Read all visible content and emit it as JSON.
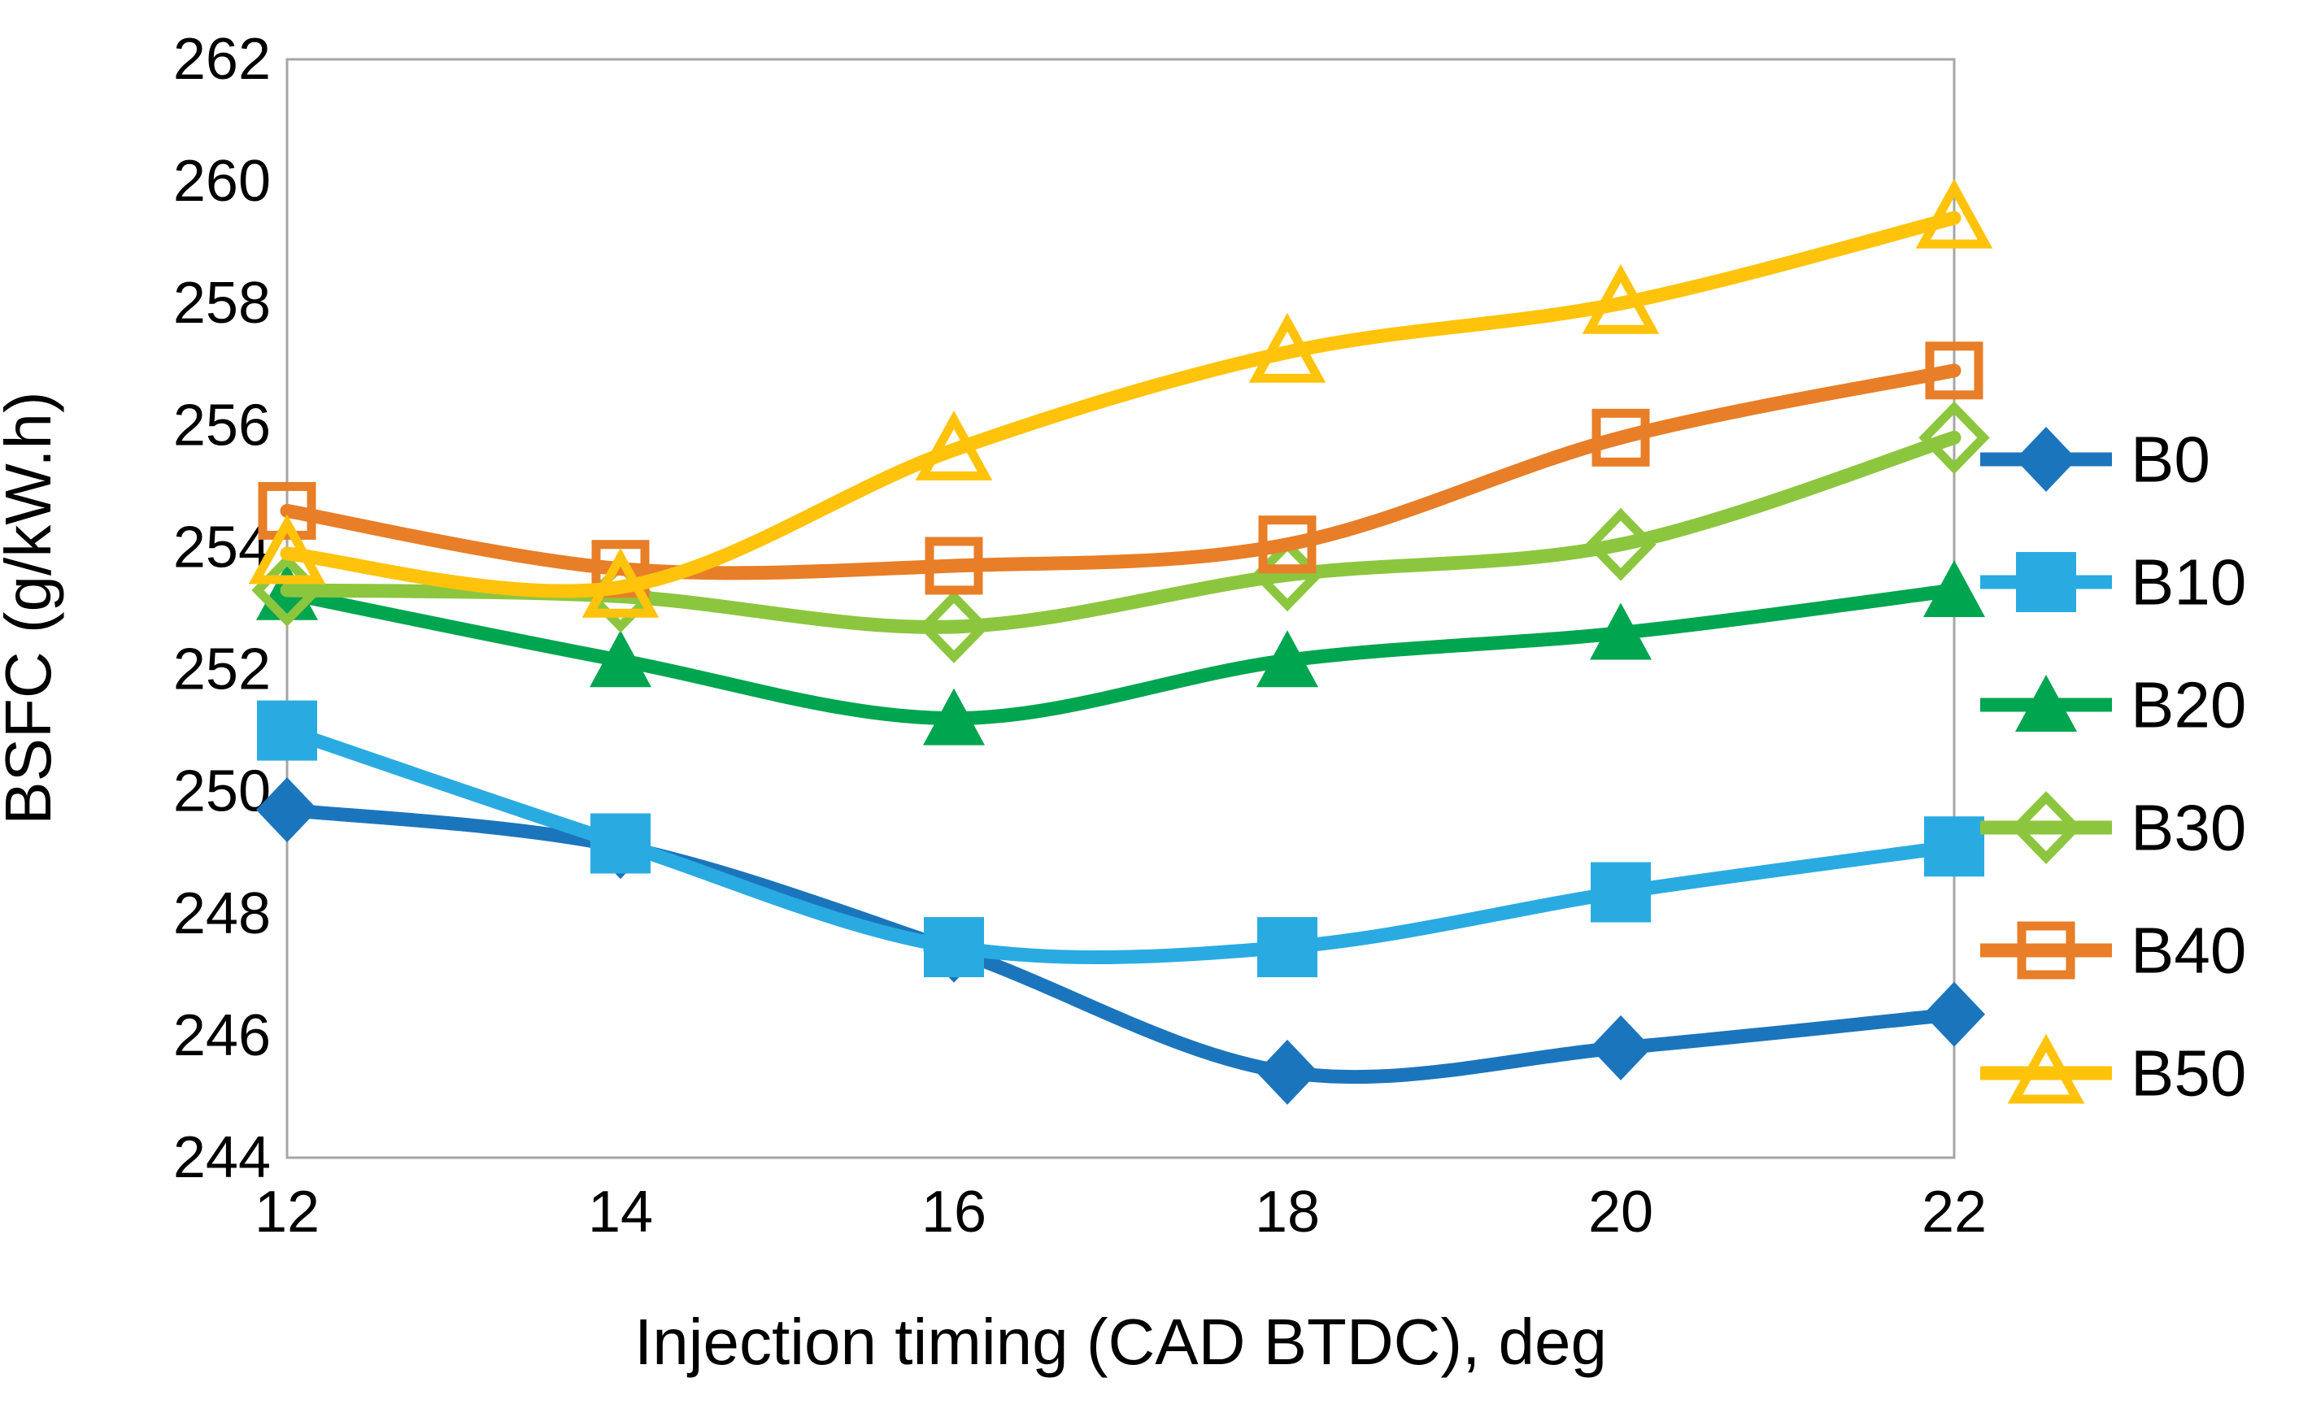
{
  "chart_data": {
    "type": "line",
    "title": "",
    "xlabel": "Injection timing (CAD BTDC), deg",
    "ylabel": "BSFC (g/kW.h)",
    "x": [
      12,
      14,
      16,
      18,
      20,
      22
    ],
    "x_tick_labels": [
      "12",
      "14",
      "16",
      "18",
      "20",
      "22"
    ],
    "y_tick_labels": [
      "244",
      "246",
      "248",
      "250",
      "252",
      "254",
      "256",
      "258",
      "260",
      "262"
    ],
    "xlim": [
      12,
      22
    ],
    "ylim": [
      244,
      262
    ],
    "y_tick_step": 2,
    "grid": false,
    "smooth_lines": true,
    "legend_position": "right-middle",
    "axis_color": "#A6A6A6",
    "text_color": "#000000",
    "background_color": "#FFFFFF",
    "series": [
      {
        "name": "B0",
        "color": "#1B75BC",
        "marker": "diamond-filled",
        "values": [
          249.7,
          249.1,
          247.4,
          245.4,
          245.8,
          246.35
        ]
      },
      {
        "name": "B10",
        "color": "#29ABE2",
        "marker": "square-filled",
        "values": [
          251.0,
          249.15,
          247.45,
          247.45,
          248.35,
          249.1
        ]
      },
      {
        "name": "B20",
        "color": "#00A550",
        "marker": "triangle-filled",
        "values": [
          253.25,
          252.15,
          251.2,
          252.15,
          252.6,
          253.3
        ]
      },
      {
        "name": "B30",
        "color": "#8CC63E",
        "marker": "diamond-open",
        "values": [
          253.3,
          253.2,
          252.7,
          253.55,
          254.05,
          255.8
        ]
      },
      {
        "name": "B40",
        "color": "#E87E27",
        "marker": "square-open",
        "values": [
          254.6,
          253.65,
          253.7,
          254.05,
          255.8,
          256.9
        ]
      },
      {
        "name": "B50",
        "color": "#FFC30B",
        "marker": "triangle-open",
        "values": [
          253.9,
          253.35,
          255.6,
          257.2,
          258.0,
          259.4
        ]
      }
    ]
  }
}
